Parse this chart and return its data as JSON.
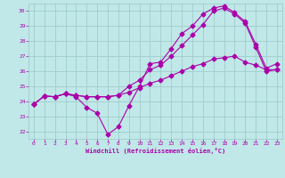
{
  "xlabel": "Windchill (Refroidissement éolien,°C)",
  "xlim": [
    -0.5,
    23.5
  ],
  "ylim": [
    21.5,
    30.5
  ],
  "yticks": [
    22,
    23,
    24,
    25,
    26,
    27,
    28,
    29,
    30
  ],
  "xticks": [
    0,
    1,
    2,
    3,
    4,
    5,
    6,
    7,
    8,
    9,
    10,
    11,
    12,
    13,
    14,
    15,
    16,
    17,
    18,
    19,
    20,
    21,
    22,
    23
  ],
  "bg_color": "#c0e8e8",
  "grid_color": "#a0cccc",
  "line_color": "#aa00aa",
  "series1_x": [
    0,
    1,
    2,
    3,
    4,
    5,
    6,
    7,
    8,
    9,
    10,
    11,
    12,
    13,
    14,
    15,
    16,
    17,
    18,
    19,
    20,
    21,
    22,
    23
  ],
  "series1_y": [
    23.8,
    24.35,
    24.3,
    24.5,
    24.3,
    23.6,
    23.2,
    21.8,
    22.3,
    23.7,
    25.0,
    26.5,
    26.6,
    27.5,
    28.5,
    29.0,
    29.8,
    30.2,
    30.35,
    29.9,
    29.3,
    27.8,
    26.2,
    26.5
  ],
  "series2_x": [
    0,
    1,
    2,
    3,
    4,
    5,
    6,
    7,
    8,
    9,
    10,
    11,
    12,
    13,
    14,
    15,
    16,
    17,
    18,
    19,
    20,
    21,
    22,
    23
  ],
  "series2_y": [
    23.8,
    24.35,
    24.3,
    24.5,
    24.4,
    24.3,
    24.3,
    24.3,
    24.4,
    24.6,
    24.9,
    25.2,
    25.4,
    25.7,
    26.0,
    26.3,
    26.5,
    26.8,
    26.9,
    27.0,
    26.6,
    26.4,
    26.1,
    26.1
  ],
  "series3_x": [
    0,
    1,
    2,
    3,
    4,
    5,
    6,
    7,
    8,
    9,
    10,
    11,
    12,
    13,
    14,
    15,
    16,
    17,
    18,
    19,
    20,
    21,
    22,
    23
  ],
  "series3_y": [
    23.8,
    24.35,
    24.3,
    24.5,
    24.4,
    24.3,
    24.3,
    24.3,
    24.4,
    25.0,
    25.4,
    26.1,
    26.4,
    27.0,
    27.7,
    28.4,
    29.1,
    30.0,
    30.2,
    29.8,
    29.2,
    27.6,
    26.0,
    26.1
  ]
}
